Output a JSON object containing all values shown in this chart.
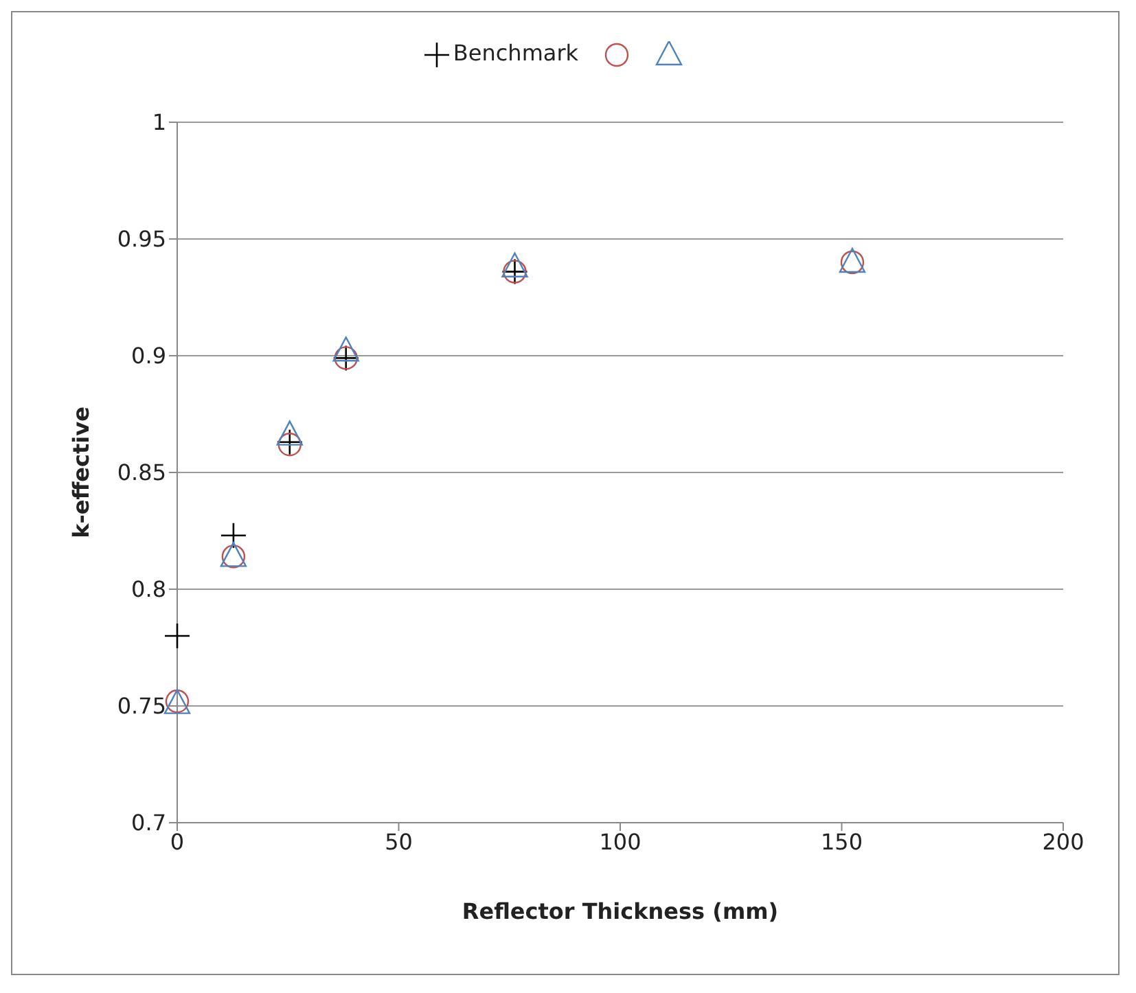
{
  "chart_data": {
    "type": "scatter",
    "xlabel": "Reflector Thickness (mm)",
    "ylabel": "k-effective",
    "x": [
      0,
      12.7,
      25.4,
      38.1,
      76.2,
      152.4
    ],
    "series": [
      {
        "name": "Benchmark",
        "color": "#000000",
        "marker": "cross",
        "values": [
          0.78,
          0.823,
          0.863,
          0.899,
          0.936,
          null
        ]
      },
      {
        "color": "#c0504d",
        "marker": "circle",
        "values": [
          0.752,
          0.814,
          0.862,
          0.899,
          0.936,
          0.94
        ]
      },
      {
        "color": "#4f81bd",
        "marker": "triangle",
        "values": [
          0.751,
          0.814,
          0.866,
          0.902,
          0.938,
          0.94
        ]
      }
    ],
    "xlim": [
      0,
      200
    ],
    "xticks": [
      0,
      50,
      100,
      150,
      200
    ],
    "ylim": [
      0.7,
      1
    ],
    "yticks": [
      0.7,
      0.75,
      0.8,
      0.85,
      0.9,
      0.95,
      1
    ],
    "grid": "y",
    "legend": "top"
  }
}
